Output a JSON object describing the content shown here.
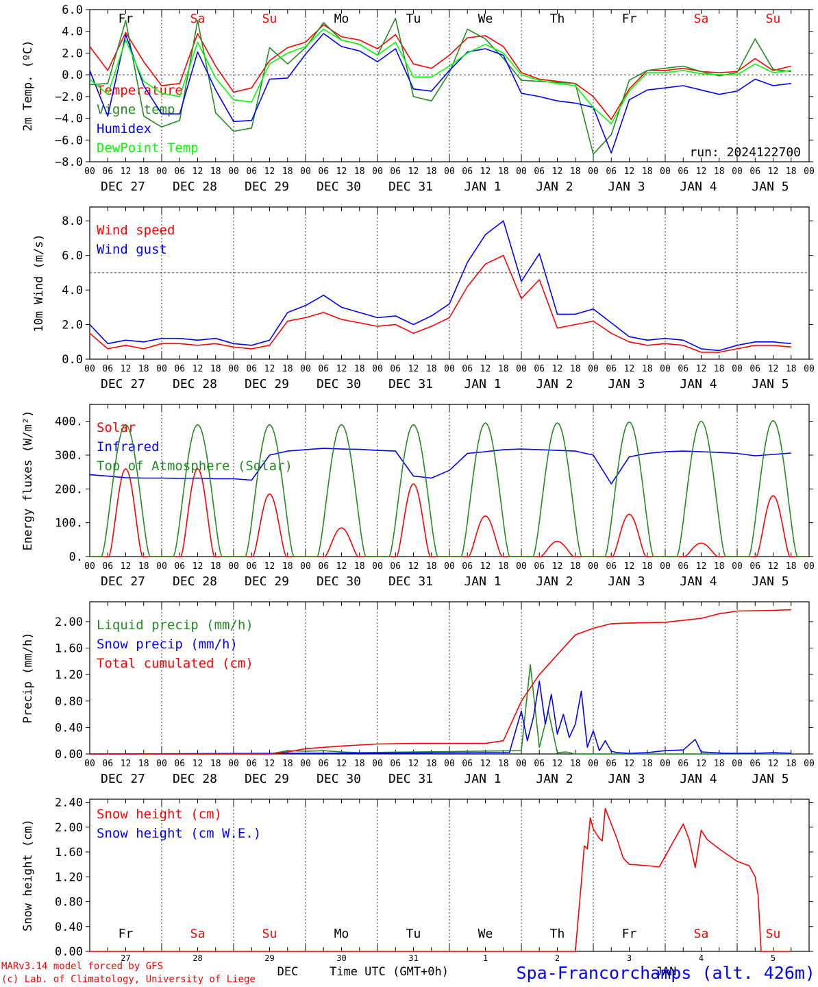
{
  "footer": {
    "credit1": "MARv3.14 model forced by GFS",
    "credit2": "(c) Lab. of Climatology, University of Liege",
    "xlabel": "Time UTC (GMT+0h)",
    "month1": "DEC",
    "month2": "JAN",
    "station": "Spa-Francorchamps (alt. 426m)"
  },
  "axis": {
    "hour_ticks": [
      "00",
      "06",
      "12",
      "18"
    ],
    "day_labels": [
      "DEC 27",
      "DEC 28",
      "DEC 29",
      "DEC 30",
      "DEC 31",
      "JAN  1",
      "JAN  2",
      "JAN  3",
      "JAN  4",
      "JAN  5"
    ],
    "weekdays": [
      "Fr",
      "Sa",
      "Su",
      "Mo",
      "Tu",
      "We",
      "Th",
      "Fr",
      "Sa",
      "Su"
    ],
    "weekday_colors": [
      "#000000",
      "#ff0000",
      "#ff0000",
      "#000000",
      "#000000",
      "#000000",
      "#000000",
      "#000000",
      "#ff0000",
      "#ff0000"
    ],
    "day_numbers": [
      "27",
      "28",
      "29",
      "30",
      "31",
      "1",
      "2",
      "3",
      "4",
      "5"
    ],
    "day_count": 10
  },
  "chart_data": [
    {
      "type": "line",
      "ylabel": "2m Temp. (ºC)",
      "ylim": [
        -8,
        6
      ],
      "yticks": [
        "6.0",
        "4.0",
        "2.0",
        "0.0",
        "−2.0",
        "−4.0",
        "−6.0",
        "−8.0"
      ],
      "ytick_values": [
        6,
        4,
        2,
        0,
        -2,
        -4,
        -6,
        -8
      ],
      "ref_line": 0,
      "annotation": "run: 2024122700",
      "x_hours": [
        0,
        6,
        12,
        18,
        24,
        30,
        36,
        42,
        48,
        54,
        60,
        66,
        72,
        78,
        84,
        90,
        96,
        102,
        108,
        114,
        120,
        126,
        132,
        138,
        144,
        150,
        156,
        162,
        168,
        174,
        180,
        186,
        192,
        198,
        204,
        210,
        216,
        222,
        228,
        234
      ],
      "series": [
        {
          "name": "Temperature",
          "color": "#ff0000",
          "values": [
            2.6,
            0.4,
            3.9,
            1.2,
            -1.0,
            -0.8,
            3.8,
            0.8,
            -1.6,
            -1.2,
            1.3,
            2.5,
            3.0,
            4.6,
            3.5,
            3.2,
            2.4,
            3.7,
            1.0,
            0.6,
            1.8,
            3.4,
            3.6,
            2.6,
            0.2,
            -0.4,
            -0.6,
            -0.8,
            -2.0,
            -4.1,
            -1.3,
            0.4,
            0.4,
            0.6,
            0.3,
            0.2,
            0.3,
            1.5,
            0.4,
            0.8
          ]
        },
        {
          "name": "Vigne temp",
          "color": "#228b22",
          "values": [
            -0.9,
            -0.8,
            5.0,
            -3.8,
            -4.8,
            -4.2,
            5.0,
            -3.5,
            -5.2,
            -4.9,
            2.5,
            1.0,
            2.5,
            4.8,
            3.2,
            2.8,
            1.8,
            5.2,
            -2.0,
            -2.4,
            0.2,
            4.2,
            3.3,
            1.5,
            -0.5,
            -0.6,
            -0.7,
            -0.8,
            -7.3,
            -5.5,
            -0.5,
            0.4,
            0.6,
            0.8,
            0.3,
            -0.1,
            0.2,
            3.3,
            0.5,
            0.3
          ]
        },
        {
          "name": "Humidex",
          "color": "#0000ff",
          "values": [
            0.4,
            -3.8,
            3.7,
            -1.0,
            -3.6,
            -3.6,
            2.1,
            -1.4,
            -4.3,
            -4.2,
            -0.4,
            -0.3,
            1.9,
            3.8,
            2.6,
            2.2,
            1.2,
            2.4,
            -1.3,
            -1.5,
            0.4,
            2.1,
            2.4,
            1.8,
            -1.7,
            -2.0,
            -2.4,
            -2.6,
            -3.0,
            -7.2,
            -2.3,
            -1.4,
            -1.2,
            -1.0,
            -1.4,
            -1.8,
            -1.5,
            -0.4,
            -1.0,
            -0.8
          ]
        },
        {
          "name": "DewPoint Temp",
          "color": "#00ff00",
          "values": [
            -0.4,
            -1.8,
            3.2,
            -0.6,
            -1.7,
            -2.0,
            3.0,
            -0.3,
            -2.3,
            -2.5,
            1.0,
            2.0,
            2.6,
            4.2,
            3.2,
            2.8,
            1.8,
            3.0,
            -0.2,
            -0.2,
            0.8,
            2.0,
            2.8,
            2.0,
            0.0,
            -0.5,
            -0.8,
            -1.0,
            -3.0,
            -4.5,
            -1.5,
            0.2,
            0.2,
            0.4,
            0.1,
            0.0,
            0.0,
            1.0,
            0.2,
            0.4
          ]
        }
      ]
    },
    {
      "type": "line",
      "ylabel": "10m Wind (m/s)",
      "ylim": [
        0,
        8.8
      ],
      "yticks": [
        "8.0",
        "6.0",
        "4.0",
        "2.0",
        "0.0"
      ],
      "ytick_values": [
        8,
        6,
        4,
        2,
        0
      ],
      "ref_line": 5,
      "annotation": "",
      "x_hours": [
        0,
        6,
        12,
        18,
        24,
        30,
        36,
        42,
        48,
        54,
        60,
        66,
        72,
        78,
        84,
        90,
        96,
        102,
        108,
        114,
        120,
        126,
        132,
        138,
        144,
        150,
        156,
        162,
        168,
        174,
        180,
        186,
        192,
        198,
        204,
        210,
        216,
        222,
        228,
        234
      ],
      "series": [
        {
          "name": "Wind speed",
          "color": "#ff0000",
          "values": [
            1.5,
            0.6,
            0.8,
            0.6,
            0.9,
            0.9,
            0.8,
            0.9,
            0.7,
            0.6,
            0.8,
            2.2,
            2.4,
            2.7,
            2.3,
            2.1,
            1.9,
            2.0,
            1.5,
            1.9,
            2.4,
            4.2,
            5.5,
            6.0,
            3.5,
            4.6,
            1.8,
            2.0,
            2.2,
            1.5,
            1.0,
            0.8,
            0.9,
            0.8,
            0.4,
            0.4,
            0.6,
            0.8,
            0.8,
            0.7
          ]
        },
        {
          "name": "Wind gust",
          "color": "#0000ff",
          "values": [
            2.0,
            0.9,
            1.1,
            1.0,
            1.2,
            1.2,
            1.1,
            1.2,
            0.9,
            0.8,
            1.1,
            2.7,
            3.1,
            3.7,
            3.0,
            2.7,
            2.4,
            2.5,
            2.0,
            2.5,
            3.2,
            5.6,
            7.2,
            8.0,
            4.5,
            6.1,
            2.6,
            2.6,
            2.9,
            2.1,
            1.3,
            1.1,
            1.2,
            1.1,
            0.6,
            0.5,
            0.8,
            1.0,
            1.0,
            0.9
          ]
        }
      ]
    },
    {
      "type": "line",
      "ylabel": "Energy fluxes (W/m²)",
      "ylim": [
        0,
        450
      ],
      "yticks": [
        "400.",
        "300.",
        "200.",
        "100.",
        "0."
      ],
      "ytick_values": [
        400,
        300,
        200,
        100,
        0
      ],
      "ref_line": null,
      "annotation": "",
      "series": [
        {
          "name": "Solar",
          "color": "#ff0000",
          "peaks": [
            260,
            260,
            185,
            85,
            215,
            120,
            45,
            125,
            40,
            180
          ]
        },
        {
          "name": "Infrared",
          "color": "#0000ff",
          "x_hours": [
            0,
            6,
            12,
            18,
            24,
            30,
            36,
            42,
            48,
            54,
            60,
            66,
            72,
            78,
            84,
            90,
            96,
            102,
            108,
            114,
            120,
            126,
            132,
            138,
            144,
            150,
            156,
            162,
            168,
            174,
            180,
            186,
            192,
            198,
            204,
            210,
            216,
            222,
            228,
            234
          ],
          "values": [
            242,
            238,
            233,
            232,
            232,
            231,
            232,
            230,
            230,
            226,
            300,
            312,
            316,
            320,
            318,
            317,
            314,
            312,
            238,
            232,
            255,
            305,
            310,
            316,
            318,
            316,
            314,
            312,
            300,
            215,
            295,
            305,
            310,
            312,
            310,
            308,
            305,
            298,
            302,
            306
          ]
        },
        {
          "name": "Top of Atmosphere (Solar)",
          "color": "#228b22",
          "peaks": [
            390,
            390,
            390,
            390,
            390,
            395,
            395,
            398,
            400,
            402
          ]
        }
      ]
    },
    {
      "type": "line",
      "ylabel": "Precip (mm/h)",
      "ylim": [
        0,
        2.3
      ],
      "yticks": [
        "2.00",
        "1.60",
        "1.20",
        "0.80",
        "0.40",
        "0.00"
      ],
      "ytick_values": [
        2.0,
        1.6,
        1.2,
        0.8,
        0.4,
        0.0
      ],
      "ref_line": null,
      "annotation": "",
      "series": [
        {
          "name": "Liquid precip (mm/h)",
          "color": "#228b22",
          "x_hours": [
            0,
            60,
            66,
            72,
            78,
            84,
            90,
            144,
            147,
            150,
            153,
            156,
            159,
            162,
            234
          ],
          "values": [
            0,
            0,
            0.05,
            0.04,
            0.05,
            0.03,
            0.02,
            0.05,
            1.35,
            0.1,
            0.65,
            0.02,
            0.03,
            0.0,
            0
          ]
        },
        {
          "name": "Snow precip (mm/h)",
          "color": "#0000ff",
          "x_hours": [
            0,
            140,
            144,
            146,
            148,
            150,
            152,
            154,
            156,
            158,
            160,
            162,
            164,
            166,
            168,
            170,
            172,
            174,
            176,
            180,
            186,
            192,
            198,
            202,
            204,
            208,
            212,
            216,
            222,
            228,
            234
          ],
          "values": [
            0,
            0.02,
            0.65,
            0.2,
            0.55,
            1.1,
            0.45,
            0.9,
            0.3,
            0.6,
            0.25,
            0.45,
            0.95,
            0.1,
            0.35,
            0.05,
            0.2,
            0.04,
            0.02,
            0.01,
            0.02,
            0.05,
            0.06,
            0.22,
            0.03,
            0.02,
            0.01,
            0.01,
            0.01,
            0.02,
            0.01
          ]
        },
        {
          "name": "Total cumulated (cm)",
          "color": "#ff0000",
          "x_hours": [
            0,
            60,
            66,
            72,
            84,
            96,
            108,
            120,
            132,
            138,
            144,
            150,
            156,
            162,
            168,
            174,
            180,
            192,
            204,
            210,
            216,
            228,
            234
          ],
          "values": [
            0,
            0,
            0.03,
            0.08,
            0.12,
            0.15,
            0.16,
            0.16,
            0.16,
            0.2,
            0.8,
            1.2,
            1.5,
            1.8,
            1.9,
            1.97,
            1.98,
            1.99,
            2.05,
            2.12,
            2.16,
            2.17,
            2.18
          ]
        }
      ]
    },
    {
      "type": "line",
      "ylabel": "Snow height (cm)",
      "ylim": [
        0,
        2.45
      ],
      "yticks": [
        "2.40",
        "2.00",
        "1.60",
        "1.20",
        "0.80",
        "0.40",
        "0.00"
      ],
      "ytick_values": [
        2.4,
        2.0,
        1.6,
        1.2,
        0.8,
        0.4,
        0.0
      ],
      "ref_line": null,
      "annotation": "",
      "series": [
        {
          "name": "Snow height (cm)",
          "color": "#ff0000",
          "x_hours": [
            0,
            162,
            164,
            165,
            166,
            167,
            168,
            170,
            171,
            172,
            174,
            176,
            178,
            180,
            186,
            190,
            198,
            200,
            202,
            204,
            206,
            210,
            216,
            220,
            222,
            223,
            224,
            234
          ],
          "values": [
            0,
            0,
            1.1,
            1.7,
            1.65,
            2.15,
            1.97,
            1.82,
            1.78,
            2.3,
            2.05,
            1.8,
            1.5,
            1.4,
            1.38,
            1.36,
            2.05,
            1.8,
            1.35,
            1.95,
            1.8,
            1.65,
            1.45,
            1.38,
            1.2,
            0.9,
            0,
            0
          ]
        },
        {
          "name": "Snow height (cm W.E.)",
          "color": "#0000ff",
          "x_hours": [],
          "values": []
        }
      ]
    }
  ]
}
